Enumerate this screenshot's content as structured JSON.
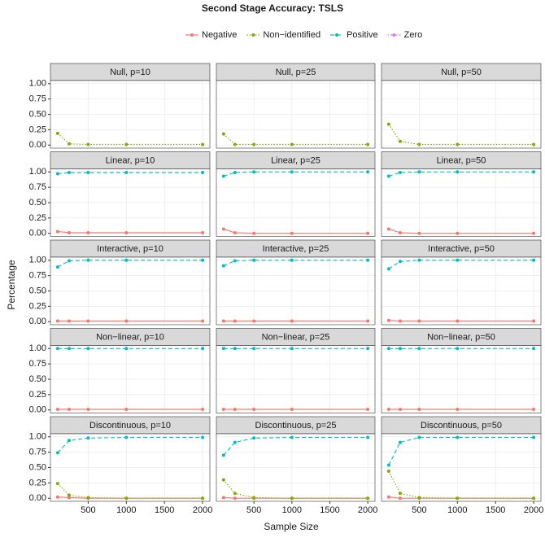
{
  "chart_data": {
    "type": "line",
    "title": "Second Stage Accuracy: TSLS",
    "xlabel": "Sample Size",
    "ylabel": "Percentage",
    "x": [
      100,
      250,
      500,
      1000,
      2000
    ],
    "xlim": [
      5,
      2095
    ],
    "xticks": [
      500,
      1000,
      1500,
      2000
    ],
    "ylim": [
      -0.05,
      1.05
    ],
    "yticks": [
      {
        "value": 0,
        "label": "0.00"
      },
      {
        "value": 0.25,
        "label": "0.25"
      },
      {
        "value": 0.5,
        "label": "0.50"
      },
      {
        "value": 0.75,
        "label": "0.75"
      },
      {
        "value": 1,
        "label": "1.00"
      }
    ],
    "grid": true,
    "series": [
      {
        "name": "Negative",
        "color": "#f8766d",
        "linestyle": "solid"
      },
      {
        "name": "Non−identified",
        "color": "#7cae00",
        "linestyle": "dotted"
      },
      {
        "name": "Positive",
        "color": "#00bfc4",
        "linestyle": "dashed"
      },
      {
        "name": "Zero",
        "color": "#c77cff",
        "linestyle": "dotdash"
      }
    ],
    "panels": [
      {
        "title": "Null, p=10",
        "lines": [
          {
            "name": "Non−identified",
            "values": [
              0.19,
              0.02,
              0.01,
              0.01,
              0.01
            ]
          }
        ]
      },
      {
        "title": "Null, p=25",
        "lines": [
          {
            "name": "Non−identified",
            "values": [
              0.18,
              0.01,
              0.01,
              0.01,
              0.01
            ]
          }
        ]
      },
      {
        "title": "Null, p=50",
        "lines": [
          {
            "name": "Non−identified",
            "values": [
              0.34,
              0.06,
              0.01,
              0.01,
              0.01
            ]
          }
        ]
      },
      {
        "title": "Linear, p=10",
        "lines": [
          {
            "name": "Negative",
            "values": [
              0.03,
              0.01,
              0.01,
              0.01,
              0.01
            ]
          },
          {
            "name": "Positive",
            "values": [
              0.97,
              0.99,
              0.99,
              0.99,
              0.99
            ]
          }
        ]
      },
      {
        "title": "Linear, p=25",
        "lines": [
          {
            "name": "Negative",
            "values": [
              0.07,
              0.01,
              0,
              0,
              0
            ]
          },
          {
            "name": "Positive",
            "values": [
              0.93,
              0.99,
              1,
              1,
              1
            ]
          }
        ]
      },
      {
        "title": "Linear, p=50",
        "lines": [
          {
            "name": "Negative",
            "values": [
              0.07,
              0.01,
              0,
              0,
              0
            ]
          },
          {
            "name": "Positive",
            "values": [
              0.93,
              0.99,
              1,
              1,
              1
            ]
          }
        ]
      },
      {
        "title": "Interactive, p=10",
        "lines": [
          {
            "name": "Negative",
            "values": [
              0.01,
              0.01,
              0.01,
              0.01,
              0.01
            ]
          },
          {
            "name": "Positive",
            "values": [
              0.89,
              0.99,
              1,
              1,
              1
            ]
          }
        ]
      },
      {
        "title": "Interactive, p=25",
        "lines": [
          {
            "name": "Negative",
            "values": [
              0.01,
              0.01,
              0.01,
              0.01,
              0.01
            ]
          },
          {
            "name": "Positive",
            "values": [
              0.91,
              0.99,
              1,
              1,
              1
            ]
          }
        ]
      },
      {
        "title": "Interactive, p=50",
        "lines": [
          {
            "name": "Negative",
            "values": [
              0.02,
              0.01,
              0.01,
              0.01,
              0.01
            ]
          },
          {
            "name": "Positive",
            "values": [
              0.86,
              0.98,
              1,
              1,
              1
            ]
          }
        ]
      },
      {
        "title": "Non−linear, p=10",
        "lines": [
          {
            "name": "Negative",
            "values": [
              0.01,
              0.01,
              0.01,
              0.01,
              0.01
            ]
          },
          {
            "name": "Positive",
            "values": [
              1,
              1,
              1,
              1,
              1
            ]
          }
        ]
      },
      {
        "title": "Non−linear, p=25",
        "lines": [
          {
            "name": "Negative",
            "values": [
              0.01,
              0.01,
              0.01,
              0.01,
              0.01
            ]
          },
          {
            "name": "Positive",
            "values": [
              1,
              1,
              1,
              1,
              1
            ]
          }
        ]
      },
      {
        "title": "Non−linear, p=50",
        "lines": [
          {
            "name": "Negative",
            "values": [
              0.01,
              0.01,
              0.01,
              0.01,
              0.01
            ]
          },
          {
            "name": "Positive",
            "values": [
              1,
              1,
              1,
              1,
              1
            ]
          }
        ]
      },
      {
        "title": "Discontinuous, p=10",
        "lines": [
          {
            "name": "Negative",
            "values": [
              0.02,
              0.01,
              0,
              0,
              0
            ]
          },
          {
            "name": "Non−identified",
            "values": [
              0.24,
              0.05,
              0.01,
              0,
              0
            ]
          },
          {
            "name": "Positive",
            "values": [
              0.74,
              0.94,
              0.98,
              0.99,
              0.99
            ]
          }
        ]
      },
      {
        "title": "Discontinuous, p=25",
        "lines": [
          {
            "name": "Negative",
            "values": [
              0.01,
              0,
              0,
              0,
              0
            ]
          },
          {
            "name": "Non−identified",
            "values": [
              0.3,
              0.08,
              0.01,
              0,
              0
            ]
          },
          {
            "name": "Positive",
            "values": [
              0.7,
              0.91,
              0.98,
              0.99,
              0.99
            ]
          }
        ]
      },
      {
        "title": "Discontinuous, p=50",
        "lines": [
          {
            "name": "Negative",
            "values": [
              0.02,
              0,
              0,
              0,
              0
            ]
          },
          {
            "name": "Non−identified",
            "values": [
              0.44,
              0.08,
              0.01,
              0,
              0
            ]
          },
          {
            "name": "Positive",
            "values": [
              0.54,
              0.91,
              0.99,
              0.99,
              0.99
            ]
          }
        ]
      }
    ]
  }
}
